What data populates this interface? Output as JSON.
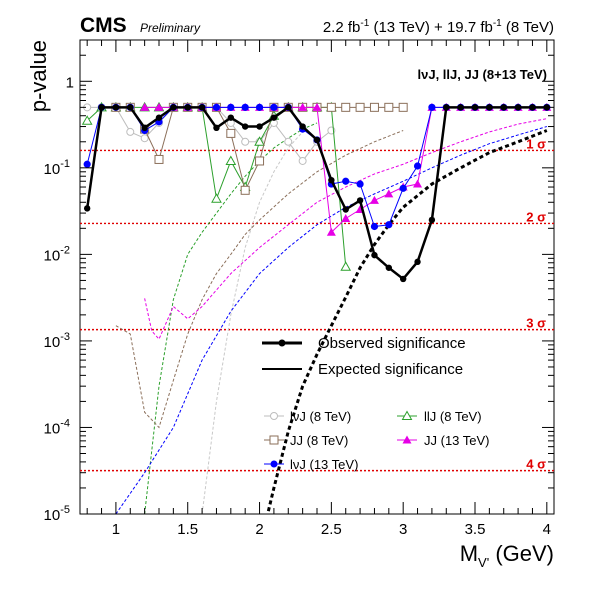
{
  "header": {
    "experiment": "CMS",
    "status": "Preliminary",
    "lumi_13": "2.2 fb",
    "lumi_13_exp": "-1",
    "lumi_13_energy": " (13 TeV) + 19.7 fb",
    "lumi_8_exp": "-1",
    "lumi_8_energy": " (8 TeV)"
  },
  "chart_data": {
    "type": "line",
    "title": "",
    "annotation": "lνJ, llJ, JJ (8+13 TeV)",
    "xlabel": "M",
    "xlabel_sub": "V'",
    "xlabel_unit": " (GeV)",
    "ylabel": "p-value",
    "xlim": [
      0.75,
      4.05
    ],
    "ylim": [
      1e-05,
      3
    ],
    "yscale": "log",
    "x_ticks": [
      1,
      1.5,
      2,
      2.5,
      3,
      3.5,
      4
    ],
    "x_tick_labels": [
      "1",
      "1.5",
      "2",
      "2.5",
      "3",
      "3.5",
      "4"
    ],
    "y_ticks": [
      1e-05,
      0.0001,
      0.001,
      0.01,
      0.1,
      1
    ],
    "y_tick_labels": [
      {
        "base": "10",
        "exp": "-5"
      },
      {
        "base": "10",
        "exp": "-4"
      },
      {
        "base": "10",
        "exp": "-3"
      },
      {
        "base": "10",
        "exp": "-2"
      },
      {
        "base": "10",
        "exp": "-1"
      },
      {
        "base": "1",
        "exp": ""
      }
    ],
    "sigma_lines": [
      {
        "label": "1 σ",
        "p": 0.159
      },
      {
        "label": "2 σ",
        "p": 0.0228
      },
      {
        "label": "3 σ",
        "p": 0.00135
      },
      {
        "label": "4 σ",
        "p": 3.17e-05
      }
    ],
    "legend_main": [
      {
        "label": "Observed significance",
        "style": "observed"
      },
      {
        "label": "Expected significance",
        "style": "expected"
      }
    ],
    "legend_channels": [
      {
        "label": "lνJ (8 TeV)",
        "series": "lvj8"
      },
      {
        "label": "llJ (8 TeV)",
        "series": "llj8"
      },
      {
        "label": "JJ (8 TeV)",
        "series": "jj8"
      },
      {
        "label": "JJ (13 TeV)",
        "series": "jj13"
      },
      {
        "label": "lνJ (13 TeV)",
        "series": "lvj13"
      }
    ],
    "series": [
      {
        "id": "lvj8",
        "name": "lνJ (8 TeV)",
        "color": "#bdbdbd",
        "marker": "circle-open",
        "x": [
          0.8,
          0.9,
          1.0,
          1.1,
          1.2,
          1.3,
          1.4,
          1.5,
          1.6,
          1.7,
          1.8,
          1.9,
          2.0,
          2.1,
          2.2,
          2.3,
          2.4,
          2.5
        ],
        "y": [
          0.5,
          0.5,
          0.5,
          0.26,
          0.22,
          0.33,
          0.5,
          0.5,
          0.5,
          0.5,
          0.33,
          0.2,
          0.2,
          0.33,
          0.2,
          0.12,
          0.2,
          0.27
        ]
      },
      {
        "id": "llj8",
        "name": "llJ (8 TeV)",
        "color": "#2ca02c",
        "marker": "triangle-open",
        "x": [
          0.8,
          0.9,
          1.0,
          1.1,
          1.2,
          1.3,
          1.4,
          1.5,
          1.6,
          1.7,
          1.8,
          1.9,
          2.0,
          2.1,
          2.2,
          2.3,
          2.4,
          2.5,
          2.6
        ],
        "y": [
          0.35,
          0.5,
          0.5,
          0.5,
          0.5,
          0.5,
          0.5,
          0.5,
          0.5,
          0.044,
          0.12,
          0.06,
          0.2,
          0.4,
          0.5,
          0.5,
          0.5,
          0.5,
          0.0072
        ]
      },
      {
        "id": "jj8",
        "name": "JJ (8 TeV)",
        "color": "#8b6f5a",
        "marker": "square-open",
        "x": [
          1.0,
          1.1,
          1.2,
          1.3,
          1.4,
          1.5,
          1.6,
          1.7,
          1.8,
          1.9,
          2.0,
          2.1,
          2.2,
          2.3,
          2.4,
          2.5,
          2.6,
          2.7,
          2.8,
          2.9,
          3.0
        ],
        "y": [
          0.5,
          0.5,
          0.28,
          0.125,
          0.5,
          0.5,
          0.5,
          0.5,
          0.25,
          0.055,
          0.12,
          0.5,
          0.5,
          0.5,
          0.5,
          0.5,
          0.5,
          0.5,
          0.5,
          0.5,
          0.5
        ]
      },
      {
        "id": "jj13",
        "name": "JJ (13 TeV)",
        "color": "#e600e6",
        "marker": "triangle-filled",
        "x": [
          1.2,
          1.3,
          1.4,
          1.5,
          1.6,
          1.7,
          1.8,
          1.9,
          2.0,
          2.1,
          2.2,
          2.3,
          2.4,
          2.5,
          2.6,
          2.7,
          2.8,
          2.9,
          3.0,
          3.1,
          3.2,
          3.3,
          3.4,
          3.5,
          3.6,
          3.7,
          3.8,
          3.9,
          4.0
        ],
        "y": [
          0.5,
          0.5,
          0.5,
          0.5,
          0.5,
          0.5,
          0.5,
          0.5,
          0.5,
          0.5,
          0.5,
          0.5,
          0.5,
          0.018,
          0.026,
          0.033,
          0.042,
          0.05,
          0.06,
          0.065,
          0.5,
          0.5,
          0.5,
          0.5,
          0.5,
          0.5,
          0.5,
          0.5,
          0.5
        ]
      },
      {
        "id": "lvj13",
        "name": "lνJ (13 TeV)",
        "color": "#0000ff",
        "marker": "circle-filled",
        "x": [
          0.8,
          0.9,
          1.0,
          1.1,
          1.2,
          1.3,
          1.4,
          1.5,
          1.6,
          1.7,
          1.8,
          1.9,
          2.0,
          2.1,
          2.2,
          2.3,
          2.4,
          2.5,
          2.6,
          2.7,
          2.8,
          2.9,
          3.0,
          3.1,
          3.2,
          3.3,
          3.4,
          3.5,
          3.6,
          3.7,
          3.8,
          3.9,
          4.0
        ],
        "y": [
          0.11,
          0.5,
          0.5,
          0.5,
          0.27,
          0.34,
          0.5,
          0.5,
          0.5,
          0.5,
          0.5,
          0.5,
          0.5,
          0.5,
          0.5,
          0.28,
          0.21,
          0.065,
          0.07,
          0.065,
          0.021,
          0.022,
          0.058,
          0.105,
          0.5,
          0.5,
          0.5,
          0.5,
          0.5,
          0.5,
          0.5,
          0.5,
          0.5
        ]
      },
      {
        "id": "observed",
        "name": "Observed significance",
        "color": "#000000",
        "marker": "circle-filled",
        "x": [
          0.8,
          0.9,
          1.0,
          1.1,
          1.2,
          1.3,
          1.4,
          1.5,
          1.6,
          1.7,
          1.8,
          1.9,
          2.0,
          2.1,
          2.2,
          2.3,
          2.4,
          2.5,
          2.6,
          2.7,
          2.8,
          2.9,
          3.0,
          3.1,
          3.2,
          3.3,
          3.4,
          3.5,
          3.6,
          3.7,
          3.8,
          3.9,
          4.0
        ],
        "y": [
          0.034,
          0.5,
          0.5,
          0.5,
          0.29,
          0.38,
          0.5,
          0.5,
          0.5,
          0.29,
          0.38,
          0.3,
          0.3,
          0.38,
          0.5,
          0.3,
          0.21,
          0.072,
          0.033,
          0.042,
          0.0098,
          0.007,
          0.0052,
          0.0082,
          0.025,
          0.5,
          0.5,
          0.5,
          0.5,
          0.5,
          0.5,
          0.5,
          0.5
        ]
      }
    ],
    "expected_curves": [
      {
        "id": "exp-comb",
        "color": "#000000",
        "width": 3,
        "x": [
          2.05,
          2.1,
          2.2,
          2.3,
          2.4,
          2.5,
          2.6,
          2.7,
          2.8,
          2.9,
          3.0,
          3.2,
          3.4,
          3.6,
          3.8,
          4.0
        ],
        "y": [
          9e-06,
          2e-05,
          9e-05,
          0.0003,
          0.0007,
          0.0015,
          0.0032,
          0.007,
          0.013,
          0.022,
          0.035,
          0.065,
          0.1,
          0.15,
          0.2,
          0.27
        ]
      },
      {
        "id": "exp-lvj8",
        "color": "#c8c8c8",
        "width": 1,
        "x": [
          1.6,
          1.7,
          1.8,
          1.9,
          2.0,
          2.1,
          2.2,
          2.3
        ],
        "y": [
          1e-05,
          0.0002,
          0.002,
          0.012,
          0.04,
          0.09,
          0.17,
          0.26
        ]
      },
      {
        "id": "exp-llj8",
        "color": "#2ca02c",
        "width": 1,
        "x": [
          1.2,
          1.3,
          1.4,
          1.5,
          1.6,
          1.7,
          1.8,
          1.9,
          2.0,
          2.1,
          2.2,
          2.3,
          2.4
        ],
        "y": [
          1e-05,
          0.0003,
          0.003,
          0.01,
          0.018,
          0.03,
          0.05,
          0.08,
          0.12,
          0.17,
          0.22,
          0.28,
          0.33
        ]
      },
      {
        "id": "exp-jj8",
        "color": "#8b6f5a",
        "width": 1,
        "x": [
          1.0,
          1.1,
          1.2,
          1.3,
          1.4,
          1.5,
          1.6,
          1.7,
          1.8,
          1.9,
          2.0,
          2.2,
          2.4,
          2.6,
          2.8,
          3.0
        ],
        "y": [
          0.0015,
          0.0012,
          0.00015,
          0.0001,
          0.00035,
          0.0012,
          0.003,
          0.006,
          0.01,
          0.017,
          0.025,
          0.05,
          0.09,
          0.14,
          0.2,
          0.27
        ]
      },
      {
        "id": "exp-jj13",
        "color": "#e600e6",
        "width": 1,
        "x": [
          1.2,
          1.25,
          1.3,
          1.4,
          1.5,
          1.6,
          1.8,
          2.0,
          2.2,
          2.4,
          2.6,
          2.8,
          3.0,
          3.2,
          3.4,
          3.6,
          3.8,
          4.0
        ],
        "y": [
          0.0031,
          0.0013,
          0.00105,
          0.0025,
          0.0018,
          0.0025,
          0.006,
          0.012,
          0.022,
          0.04,
          0.06,
          0.085,
          0.11,
          0.15,
          0.2,
          0.26,
          0.32,
          0.37
        ]
      },
      {
        "id": "exp-lvj13",
        "color": "#0000ff",
        "width": 1,
        "x": [
          1.0,
          1.2,
          1.4,
          1.6,
          1.8,
          2.0,
          2.2,
          2.4,
          2.6,
          2.8,
          3.0,
          3.2,
          3.4,
          3.6,
          3.8,
          4.0
        ],
        "y": [
          1e-05,
          3e-05,
          0.0001,
          0.0006,
          0.0022,
          0.006,
          0.012,
          0.022,
          0.035,
          0.05,
          0.07,
          0.1,
          0.14,
          0.19,
          0.24,
          0.3
        ]
      }
    ]
  }
}
